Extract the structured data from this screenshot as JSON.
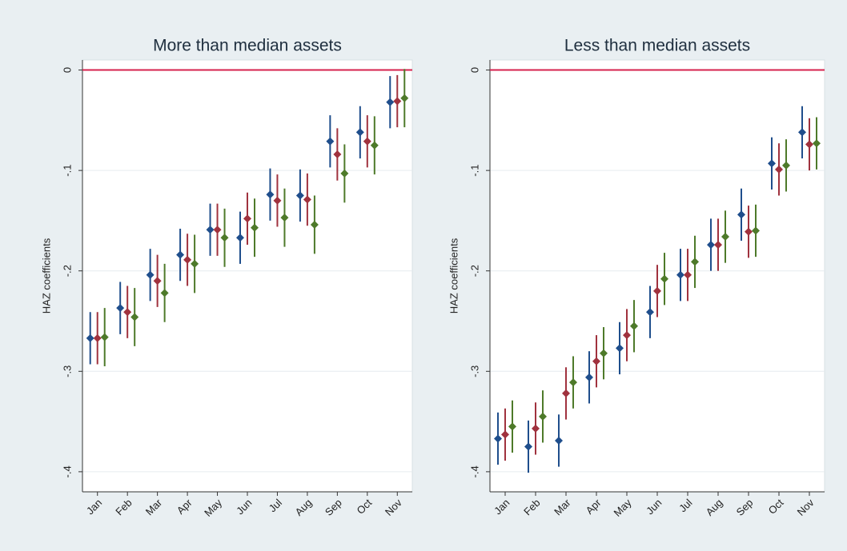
{
  "chart_data": [
    {
      "type": "errorbar",
      "title": "More than median assets",
      "ylabel": "HAZ coefficients",
      "categories": [
        "Jan",
        "Feb",
        "Mar",
        "Apr",
        "May",
        "Jun",
        "Jul",
        "Aug",
        "Sep",
        "Oct",
        "Nov"
      ],
      "ylim": [
        -0.42,
        0.01
      ],
      "yticks": [
        {
          "value": 0,
          "label": "0"
        },
        {
          "value": -0.1,
          "label": "-.1"
        },
        {
          "value": -0.2,
          "label": "-.2"
        },
        {
          "value": -0.3,
          "label": "-.3"
        },
        {
          "value": -0.4,
          "label": "-.4"
        }
      ],
      "grid": true,
      "refline": 0,
      "refline_color": "#d6224e",
      "series": [
        {
          "color": "#1f4e8c",
          "values": [
            -0.267,
            -0.237,
            -0.204,
            -0.184,
            -0.159,
            -0.167,
            -0.124,
            -0.125,
            -0.071,
            -0.062,
            -0.032
          ],
          "errors": [
            0.026,
            0.026,
            0.026,
            0.026,
            0.026,
            0.026,
            0.026,
            0.026,
            0.026,
            0.026,
            0.026
          ]
        },
        {
          "color": "#a0323e",
          "values": [
            -0.267,
            -0.241,
            -0.21,
            -0.189,
            -0.159,
            -0.148,
            -0.13,
            -0.129,
            -0.084,
            -0.071,
            -0.031
          ],
          "errors": [
            0.026,
            0.026,
            0.026,
            0.026,
            0.026,
            0.026,
            0.026,
            0.026,
            0.026,
            0.026,
            0.026
          ]
        },
        {
          "color": "#4e7a2a",
          "values": [
            -0.266,
            -0.246,
            -0.222,
            -0.193,
            -0.167,
            -0.157,
            -0.147,
            -0.154,
            -0.103,
            -0.075,
            -0.028
          ],
          "errors": [
            0.029,
            0.029,
            0.029,
            0.029,
            0.029,
            0.029,
            0.029,
            0.029,
            0.029,
            0.029,
            0.029
          ]
        }
      ]
    },
    {
      "type": "errorbar",
      "title": "Less than median assets",
      "ylabel": "HAZ coefficients",
      "categories": [
        "Jan",
        "Feb",
        "Mar",
        "Apr",
        "May",
        "Jun",
        "Jul",
        "Aug",
        "Sep",
        "Oct",
        "Nov"
      ],
      "ylim": [
        -0.42,
        0.01
      ],
      "yticks": [
        {
          "value": 0,
          "label": "0"
        },
        {
          "value": -0.1,
          "label": "-.1"
        },
        {
          "value": -0.2,
          "label": "-.2"
        },
        {
          "value": -0.3,
          "label": "-.3"
        },
        {
          "value": -0.4,
          "label": "-.4"
        }
      ],
      "grid": true,
      "refline": 0,
      "refline_color": "#d6224e",
      "series": [
        {
          "color": "#1f4e8c",
          "values": [
            -0.367,
            -0.375,
            -0.369,
            -0.306,
            -0.277,
            -0.241,
            -0.204,
            -0.174,
            -0.144,
            -0.093,
            -0.062
          ],
          "errors": [
            0.026,
            0.026,
            0.026,
            0.026,
            0.026,
            0.026,
            0.026,
            0.026,
            0.026,
            0.026,
            0.026
          ]
        },
        {
          "color": "#a0323e",
          "values": [
            -0.363,
            -0.357,
            -0.322,
            -0.29,
            -0.264,
            -0.22,
            -0.204,
            -0.174,
            -0.161,
            -0.099,
            -0.074
          ],
          "errors": [
            0.026,
            0.026,
            0.026,
            0.026,
            0.026,
            0.026,
            0.026,
            0.026,
            0.026,
            0.026,
            0.026
          ]
        },
        {
          "color": "#4e7a2a",
          "values": [
            -0.355,
            -0.345,
            -0.311,
            -0.282,
            -0.255,
            -0.208,
            -0.191,
            -0.166,
            -0.16,
            -0.095,
            -0.073
          ],
          "errors": [
            0.026,
            0.026,
            0.026,
            0.026,
            0.026,
            0.026,
            0.026,
            0.026,
            0.026,
            0.026,
            0.026
          ]
        }
      ]
    }
  ]
}
